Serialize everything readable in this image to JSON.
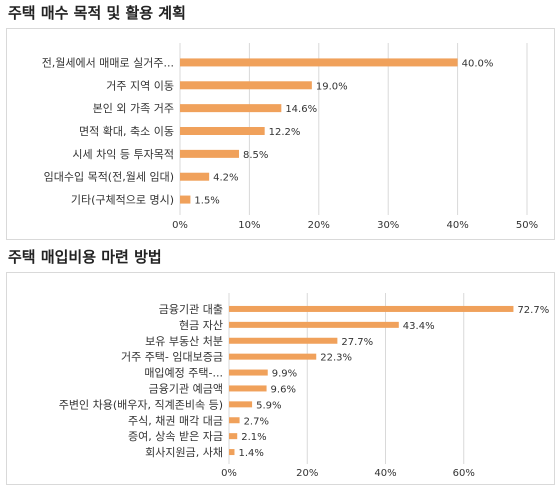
{
  "colors": {
    "bar": "#F0A15B",
    "grid": "#d9d9d9"
  },
  "chart_data": [
    {
      "type": "bar",
      "orientation": "horizontal",
      "title": "주택 매수 목적 및 활용 계획",
      "categories": [
        "전,월세에서 매매로 실거주...",
        "거주 지역 이동",
        "본인 외 가족 거주",
        "면적 확대, 축소 이동",
        "시세 차익 등 투자목적",
        "임대수입 목적(전,월세 임대)",
        "기타(구체적으로 명시)"
      ],
      "values": [
        40.0,
        19.0,
        14.6,
        12.2,
        8.5,
        4.2,
        1.5
      ],
      "value_labels": [
        "40.0%",
        "19.0%",
        "14.6%",
        "12.2%",
        "8.5%",
        "4.2%",
        "1.5%"
      ],
      "xlim": [
        0,
        50
      ],
      "ticks": [
        0,
        10,
        20,
        30,
        40,
        50
      ],
      "tick_labels": [
        "0%",
        "10%",
        "20%",
        "30%",
        "40%",
        "50%"
      ],
      "grid": true
    },
    {
      "type": "bar",
      "orientation": "horizontal",
      "title": "주택 매입비용 마련 방법",
      "categories": [
        "금융기관 대출",
        "현금 자산",
        "보유 부동산 처분",
        "거주 주택- 임대보증금",
        "매입예정 주택-...",
        "금융기관 예금액",
        "주변인 차용(배우자, 직계존비속 등)",
        "주식, 채권 매각 대금",
        "증여, 상속 받은 자금",
        "회사지원금, 사채"
      ],
      "values": [
        72.7,
        43.4,
        27.7,
        22.3,
        9.9,
        9.6,
        5.9,
        2.7,
        2.1,
        1.4
      ],
      "value_labels": [
        "72.7%",
        "43.4%",
        "27.7%",
        "22.3%",
        "9.9%",
        "9.6%",
        "5.9%",
        "2.7%",
        "2.1%",
        "1.4%"
      ],
      "xlim": [
        0,
        80
      ],
      "ticks": [
        0,
        20,
        40,
        60
      ],
      "tick_labels": [
        "0%",
        "20%",
        "40%",
        "60%"
      ],
      "grid": true
    }
  ]
}
